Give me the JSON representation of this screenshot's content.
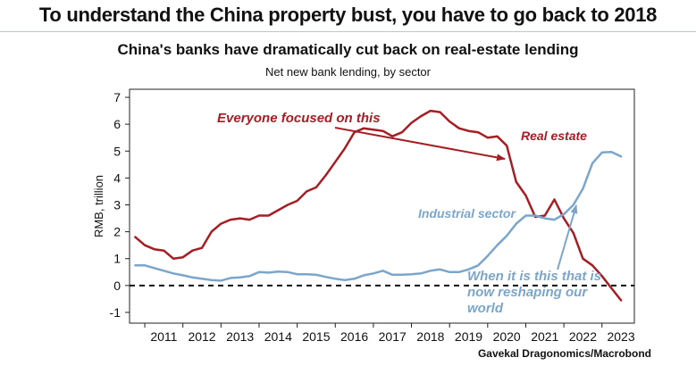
{
  "headline": "To understand the China property bust, you have to go back to 2018",
  "source": "Gavekal Dragonomics/Macrobond",
  "chart_data": {
    "type": "line",
    "title": "China's banks have dramatically cut back on real-estate lending",
    "subtitle": "Net new bank lending, by sector",
    "ylabel": "RMB, trillion",
    "xlabel": "",
    "ylim": [
      -1.4,
      7.3
    ],
    "yticks": [
      7,
      6,
      5,
      4,
      3,
      2,
      1,
      0,
      -1
    ],
    "xlim": [
      2010.6,
      2023.85
    ],
    "xticks": [
      "2011",
      "2012",
      "2013",
      "2014",
      "2015",
      "2016",
      "2017",
      "2018",
      "2019",
      "2020",
      "2021",
      "2022",
      "2023"
    ],
    "zero_line": "dashed",
    "grid": false,
    "series": [
      {
        "name": "Real estate",
        "color": "#a61d24",
        "x": [
          2010.75,
          2011.0,
          2011.25,
          2011.5,
          2011.75,
          2012.0,
          2012.25,
          2012.5,
          2012.75,
          2013.0,
          2013.25,
          2013.5,
          2013.75,
          2014.0,
          2014.25,
          2014.5,
          2014.75,
          2015.0,
          2015.25,
          2015.5,
          2015.75,
          2016.0,
          2016.25,
          2016.5,
          2016.75,
          2017.0,
          2017.25,
          2017.5,
          2017.75,
          2018.0,
          2018.25,
          2018.5,
          2018.75,
          2019.0,
          2019.25,
          2019.5,
          2019.75,
          2020.0,
          2020.25,
          2020.5,
          2020.75,
          2021.0,
          2021.25,
          2021.5,
          2021.75,
          2022.0,
          2022.25,
          2022.5,
          2022.75,
          2023.0,
          2023.25,
          2023.5
        ],
        "values": [
          1.8,
          1.5,
          1.35,
          1.3,
          1.0,
          1.05,
          1.3,
          1.4,
          2.0,
          2.3,
          2.45,
          2.5,
          2.45,
          2.6,
          2.6,
          2.8,
          3.0,
          3.15,
          3.5,
          3.65,
          4.1,
          4.6,
          5.1,
          5.7,
          5.85,
          5.8,
          5.75,
          5.55,
          5.7,
          6.05,
          6.3,
          6.5,
          6.45,
          6.1,
          5.85,
          5.75,
          5.7,
          5.5,
          5.55,
          5.2,
          3.85,
          3.35,
          2.55,
          2.6,
          3.2,
          2.5,
          1.95,
          1.0,
          0.75,
          0.35,
          -0.1,
          -0.55
        ]
      },
      {
        "name": "Industrial sector",
        "color": "#7ba6cc",
        "x": [
          2010.75,
          2011.0,
          2011.25,
          2011.5,
          2011.75,
          2012.0,
          2012.25,
          2012.5,
          2012.75,
          2013.0,
          2013.25,
          2013.5,
          2013.75,
          2014.0,
          2014.25,
          2014.5,
          2014.75,
          2015.0,
          2015.25,
          2015.5,
          2015.75,
          2016.0,
          2016.25,
          2016.5,
          2016.75,
          2017.0,
          2017.25,
          2017.5,
          2017.75,
          2018.0,
          2018.25,
          2018.5,
          2018.75,
          2019.0,
          2019.25,
          2019.5,
          2019.75,
          2020.0,
          2020.25,
          2020.5,
          2020.75,
          2021.0,
          2021.25,
          2021.5,
          2021.75,
          2022.0,
          2022.25,
          2022.5,
          2022.75,
          2023.0,
          2023.25,
          2023.5
        ],
        "values": [
          0.75,
          0.75,
          0.65,
          0.55,
          0.45,
          0.38,
          0.3,
          0.25,
          0.2,
          0.18,
          0.28,
          0.3,
          0.35,
          0.5,
          0.48,
          0.52,
          0.5,
          0.42,
          0.42,
          0.4,
          0.32,
          0.25,
          0.2,
          0.25,
          0.38,
          0.45,
          0.55,
          0.4,
          0.4,
          0.42,
          0.45,
          0.55,
          0.6,
          0.5,
          0.5,
          0.6,
          0.75,
          1.1,
          1.5,
          1.85,
          2.3,
          2.6,
          2.6,
          2.5,
          2.45,
          2.65,
          3.0,
          3.6,
          4.55,
          4.95,
          4.97,
          4.8
        ]
      }
    ],
    "annotations": [
      {
        "id": "real-estate-label",
        "text": "Real estate",
        "color": "#a61d24"
      },
      {
        "id": "industrial-label",
        "text": "Industrial sector",
        "color": "#7ba6cc"
      },
      {
        "id": "focus-callout",
        "text": "Everyone focused on this",
        "color": "#a61d24"
      },
      {
        "id": "reshaping-callout",
        "text": "When it is this that is now reshaping our world",
        "lines": [
          "When it is this that is",
          "now reshaping our",
          "world"
        ],
        "color": "#7ba6cc"
      }
    ]
  }
}
